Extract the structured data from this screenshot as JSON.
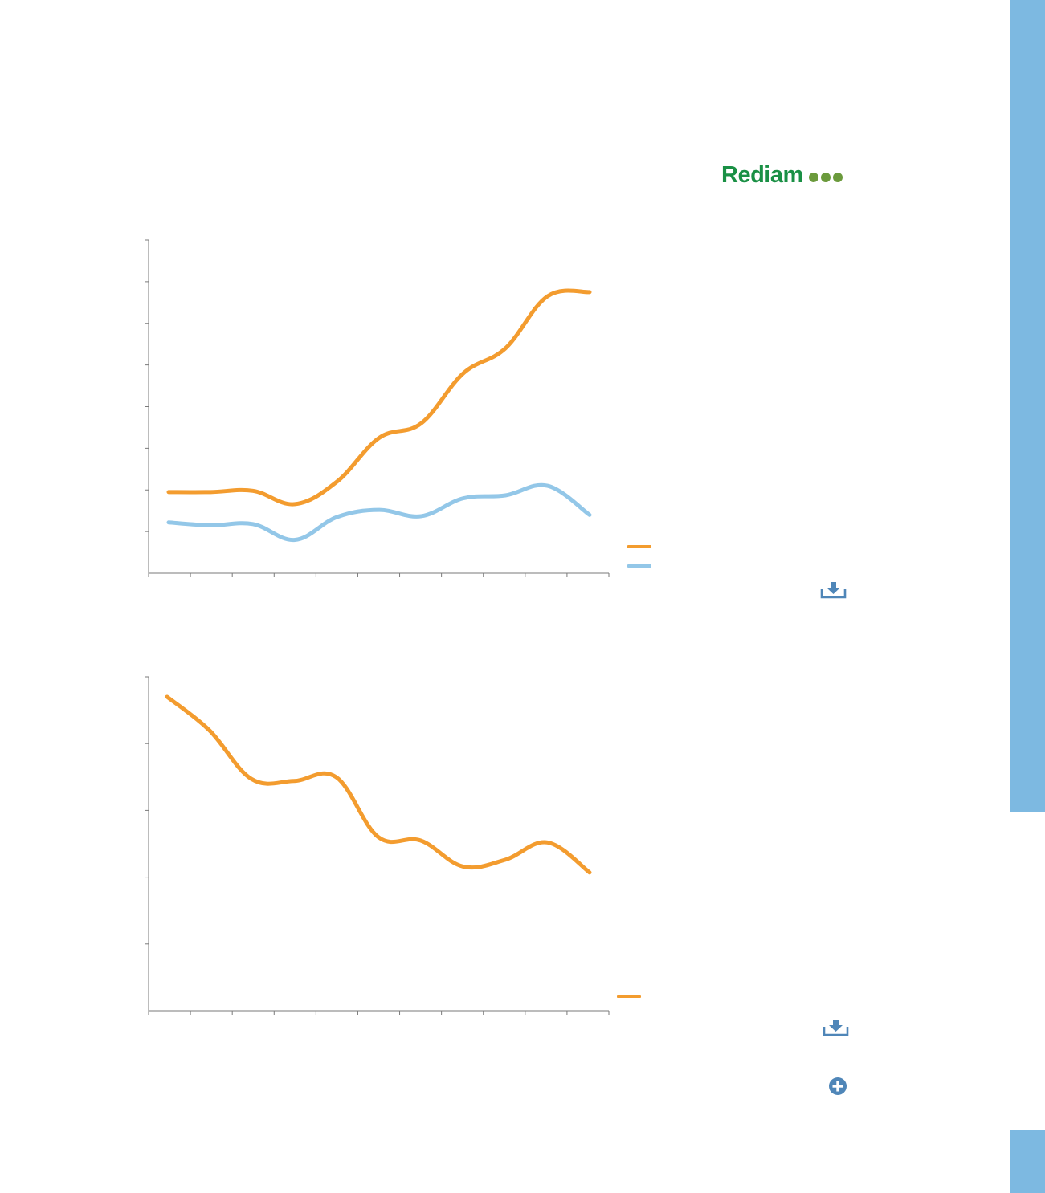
{
  "logo": {
    "text": "Rediam",
    "dot_color": "#6b9a3c"
  },
  "colors": {
    "sidebar": "#7db9e1",
    "orange": "#f39c2f",
    "blue": "#93c7e8",
    "icon": "#4f86b8",
    "axis": "#7a7a7a"
  },
  "icons": {
    "download_top": "download-icon",
    "download_bottom": "download-icon",
    "expand": "plus-circle-icon"
  },
  "chart_data": [
    {
      "type": "line",
      "title": "",
      "x": [
        1,
        2,
        3,
        4,
        5,
        6,
        7,
        8,
        9,
        10,
        11
      ],
      "ylim": [
        0,
        8
      ],
      "y_ticks": 8,
      "x_ticks": 11,
      "series": [
        {
          "color": "#f39c2f",
          "values": [
            1.95,
            1.95,
            1.98,
            1.66,
            2.2,
            3.25,
            3.6,
            4.8,
            5.4,
            6.65,
            6.75
          ]
        },
        {
          "color": "#93c7e8",
          "values": [
            1.22,
            1.15,
            1.18,
            0.8,
            1.35,
            1.52,
            1.37,
            1.8,
            1.87,
            2.1,
            1.4
          ]
        }
      ],
      "legend": {
        "position": "bottom-right"
      }
    },
    {
      "type": "line",
      "title": "",
      "x": [
        1,
        2,
        3,
        4,
        5,
        6,
        7,
        8,
        9,
        10,
        11
      ],
      "ylim": [
        0,
        5
      ],
      "y_ticks": 5,
      "x_ticks": 11,
      "series": [
        {
          "color": "#f39c2f",
          "values": [
            4.7,
            4.2,
            3.47,
            3.44,
            3.5,
            2.6,
            2.55,
            2.16,
            2.26,
            2.52,
            2.07
          ]
        }
      ],
      "legend": {
        "position": "bottom-right"
      }
    }
  ]
}
